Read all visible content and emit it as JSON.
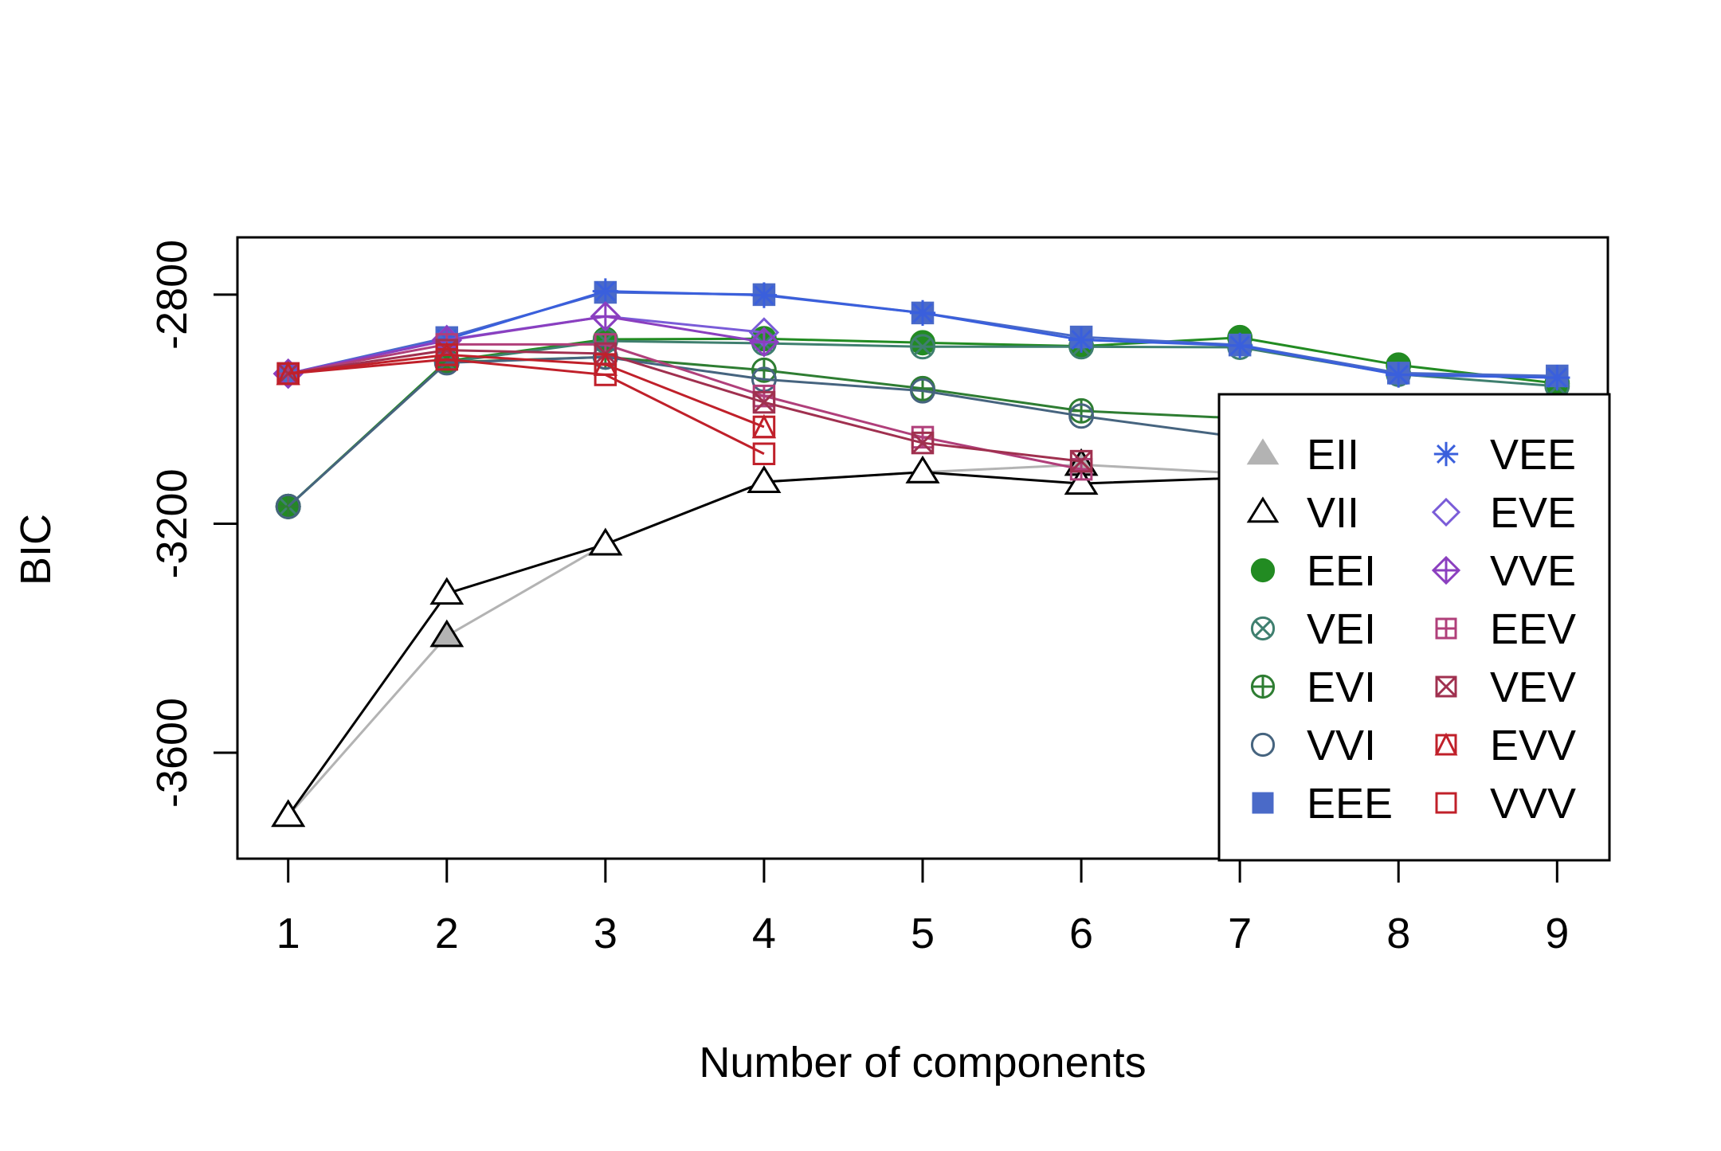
{
  "chart_data": {
    "type": "line",
    "xlabel": "Number of components",
    "ylabel": "BIC",
    "x": [
      1,
      2,
      3,
      4,
      5,
      6,
      7,
      8,
      9
    ],
    "xlim": [
      0.68,
      9.32
    ],
    "ylim": [
      -3785,
      -2700
    ],
    "y_ticks": [
      -3600,
      -3200,
      -2800
    ],
    "grid": false,
    "legend_position": "bottom-right",
    "legend_columns": 2,
    "series": [
      {
        "name": "EII",
        "color": "#b3b3b3",
        "marker": "triangle-filled",
        "values": [
          -3710,
          -3396,
          -3236,
          -3127,
          -3110,
          -3097,
          -3112,
          null,
          null
        ]
      },
      {
        "name": "VII",
        "color": "#000000",
        "marker": "triangle-open",
        "values": [
          -3710,
          -3322,
          -3236,
          -3127,
          -3110,
          -3130,
          -3120,
          null,
          null
        ]
      },
      {
        "name": "EEI",
        "color": "#228b22",
        "marker": "circle-filled",
        "values": [
          -3170,
          -2916,
          -2878,
          -2877,
          -2884,
          -2890,
          -2875,
          -2923,
          -2955
        ]
      },
      {
        "name": "VEI",
        "color": "#3f7f6f",
        "marker": "circle-x",
        "values": [
          -3170,
          -2918,
          -2881,
          -2885,
          -2891,
          -2891,
          -2892,
          -2939,
          -2960
        ]
      },
      {
        "name": "EVI",
        "color": "#2e7d32",
        "marker": "circle-plus",
        "values": [
          -3170,
          -2918,
          -2909,
          -2932,
          -2964,
          -3003,
          -3016,
          -3035,
          null
        ]
      },
      {
        "name": "VVI",
        "color": "#46647f",
        "marker": "circle-open",
        "values": [
          -3170,
          -2919,
          -2909,
          -2948,
          -2968,
          -3012,
          -3049,
          null,
          null
        ]
      },
      {
        "name": "EEE",
        "color": "#4a6ac8",
        "marker": "square-filled",
        "values": [
          -2938,
          -2875,
          -2796,
          -2800,
          -2832,
          -2874,
          -2888,
          -2937,
          -2942
        ]
      },
      {
        "name": "VEE",
        "color": "#3a5fdc",
        "marker": "asterisk",
        "values": [
          -2938,
          -2878,
          -2794,
          -2801,
          -2832,
          -2879,
          -2889,
          -2940,
          -2945
        ]
      },
      {
        "name": "EVE",
        "color": "#7a5cd8",
        "marker": "diamond-open",
        "values": [
          -2938,
          -2879,
          -2838,
          -2866,
          null,
          null,
          null,
          null,
          null
        ]
      },
      {
        "name": "VVE",
        "color": "#8b3fbf",
        "marker": "diamond-plus",
        "values": [
          -2938,
          -2880,
          -2838,
          -2883,
          null,
          null,
          null,
          null,
          null
        ]
      },
      {
        "name": "EEV",
        "color": "#b03f7a",
        "marker": "square-plus",
        "values": [
          -2938,
          -2887,
          -2887,
          -2977,
          -3049,
          -3105,
          null,
          null,
          null
        ]
      },
      {
        "name": "VEV",
        "color": "#a0304f",
        "marker": "square-x",
        "values": [
          -2938,
          -2897,
          -2903,
          -2988,
          -3059,
          -3091,
          null,
          null,
          null
        ]
      },
      {
        "name": "EVV",
        "color": "#c0202a",
        "marker": "triangle-square",
        "values": [
          -2938,
          -2905,
          -2922,
          -3031,
          null,
          null,
          null,
          null,
          null
        ]
      },
      {
        "name": "VVV",
        "color": "#c0202a",
        "marker": "square-open",
        "values": [
          -2938,
          -2913,
          -2940,
          -3078,
          null,
          null,
          null,
          null,
          null
        ]
      }
    ]
  }
}
